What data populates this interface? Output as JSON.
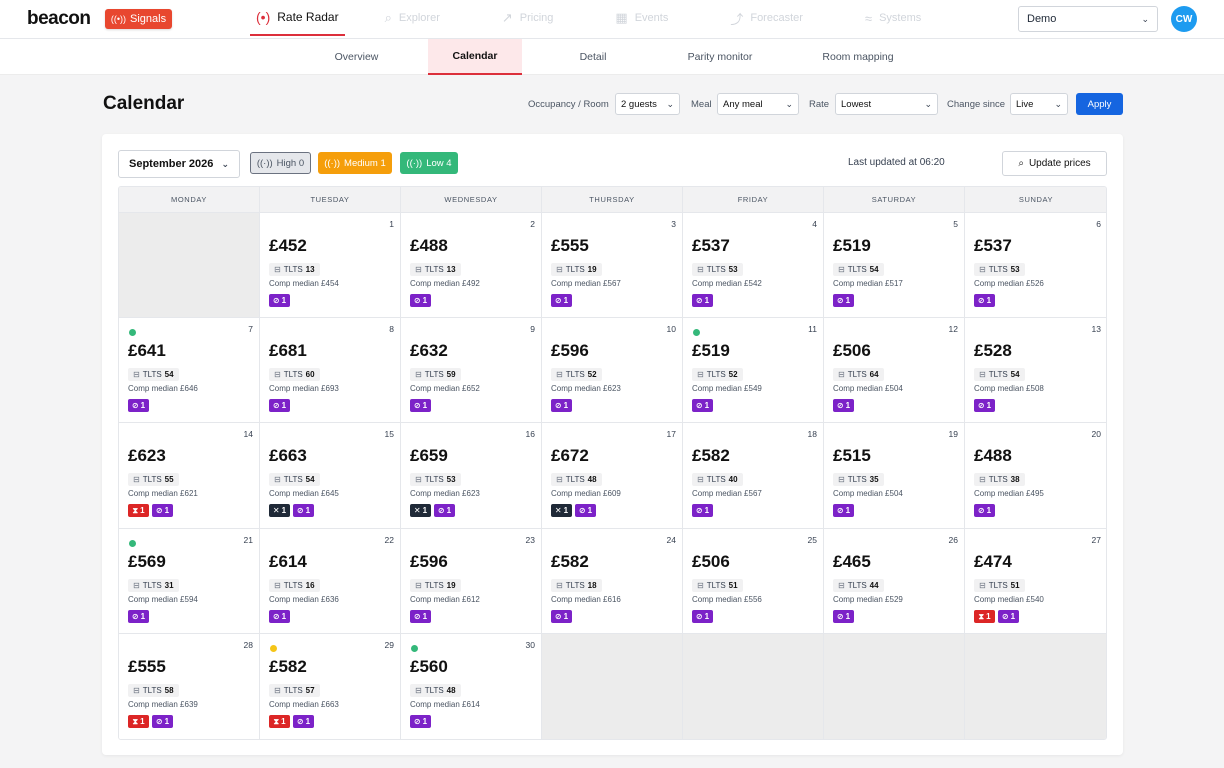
{
  "header": {
    "logo": "beacon",
    "signals_label": "Signals",
    "nav": [
      {
        "label": "Rate Radar",
        "icon": "radar-icon",
        "active": true
      },
      {
        "label": "Explorer",
        "icon": "search-icon",
        "active": false
      },
      {
        "label": "Pricing",
        "icon": "chart-icon",
        "active": false
      },
      {
        "label": "Events",
        "icon": "calendar-icon",
        "active": false
      },
      {
        "label": "Forecaster",
        "icon": "trend-icon",
        "active": false
      },
      {
        "label": "Systems",
        "icon": "wifi-icon",
        "active": false
      }
    ],
    "org_select": "Demo",
    "avatar_initials": "CW"
  },
  "subtabs": [
    {
      "label": "Overview",
      "active": false
    },
    {
      "label": "Calendar",
      "active": true
    },
    {
      "label": "Detail",
      "active": false
    },
    {
      "label": "Parity monitor",
      "active": false
    },
    {
      "label": "Room mapping",
      "active": false
    }
  ],
  "page": {
    "title": "Calendar",
    "controls": {
      "occupancy_label": "Occupancy / Room",
      "occupancy_value": "2 guests",
      "meal_label": "Meal",
      "meal_value": "Any meal",
      "rate_label": "Rate",
      "rate_value": "Lowest",
      "change_label": "Change since",
      "change_value": "Live",
      "apply_label": "Apply"
    }
  },
  "calendar": {
    "month": "September 2026",
    "filters": {
      "high": "High 0",
      "medium": "Medium 1",
      "low": "Low 4"
    },
    "last_updated": "Last updated at 06:20",
    "update_label": "Update prices",
    "weekdays": [
      "MONDAY",
      "TUESDAY",
      "WEDNESDAY",
      "THURSDAY",
      "FRIDAY",
      "SATURDAY",
      "SUNDAY"
    ],
    "tlts_label": "TLTS",
    "comp_prefix": "Comp median",
    "colors": {
      "green": "#34b87a",
      "yellow": "#f5c518",
      "purple": "#7c22c8",
      "red": "#dc2626",
      "dark": "#1f2937"
    },
    "days": [
      {
        "day": "1",
        "price": "£452",
        "tlts": "13",
        "comp": "£454",
        "badges": [
          [
            "purple",
            "1"
          ]
        ]
      },
      {
        "day": "2",
        "price": "£488",
        "tlts": "13",
        "comp": "£492",
        "badges": [
          [
            "purple",
            "1"
          ]
        ]
      },
      {
        "day": "3",
        "price": "£555",
        "tlts": "19",
        "comp": "£567",
        "badges": [
          [
            "purple",
            "1"
          ]
        ]
      },
      {
        "day": "4",
        "price": "£537",
        "tlts": "53",
        "comp": "£542",
        "badges": [
          [
            "purple",
            "1"
          ]
        ]
      },
      {
        "day": "5",
        "price": "£519",
        "tlts": "54",
        "comp": "£517",
        "badges": [
          [
            "purple",
            "1"
          ]
        ]
      },
      {
        "day": "6",
        "price": "£537",
        "tlts": "53",
        "comp": "£526",
        "badges": [
          [
            "purple",
            "1"
          ]
        ]
      },
      {
        "day": "7",
        "price": "£641",
        "tlts": "54",
        "comp": "£646",
        "dot": "green",
        "badges": [
          [
            "purple",
            "1"
          ]
        ]
      },
      {
        "day": "8",
        "price": "£681",
        "tlts": "60",
        "comp": "£693",
        "badges": [
          [
            "purple",
            "1"
          ]
        ]
      },
      {
        "day": "9",
        "price": "£632",
        "tlts": "59",
        "comp": "£652",
        "badges": [
          [
            "purple",
            "1"
          ]
        ]
      },
      {
        "day": "10",
        "price": "£596",
        "tlts": "52",
        "comp": "£623",
        "badges": [
          [
            "purple",
            "1"
          ]
        ]
      },
      {
        "day": "11",
        "price": "£519",
        "tlts": "52",
        "comp": "£549",
        "dot": "green",
        "badges": [
          [
            "purple",
            "1"
          ]
        ]
      },
      {
        "day": "12",
        "price": "£506",
        "tlts": "64",
        "comp": "£504",
        "badges": [
          [
            "purple",
            "1"
          ]
        ]
      },
      {
        "day": "13",
        "price": "£528",
        "tlts": "54",
        "comp": "£508",
        "badges": [
          [
            "purple",
            "1"
          ]
        ]
      },
      {
        "day": "14",
        "price": "£623",
        "tlts": "55",
        "comp": "£621",
        "badges": [
          [
            "red",
            "1"
          ],
          [
            "purple",
            "1"
          ]
        ]
      },
      {
        "day": "15",
        "price": "£663",
        "tlts": "54",
        "comp": "£645",
        "badges": [
          [
            "dark",
            "1"
          ],
          [
            "purple",
            "1"
          ]
        ]
      },
      {
        "day": "16",
        "price": "£659",
        "tlts": "53",
        "comp": "£623",
        "badges": [
          [
            "dark",
            "1"
          ],
          [
            "purple",
            "1"
          ]
        ]
      },
      {
        "day": "17",
        "price": "£672",
        "tlts": "48",
        "comp": "£609",
        "badges": [
          [
            "dark",
            "1"
          ],
          [
            "purple",
            "1"
          ]
        ]
      },
      {
        "day": "18",
        "price": "£582",
        "tlts": "40",
        "comp": "£567",
        "badges": [
          [
            "purple",
            "1"
          ]
        ]
      },
      {
        "day": "19",
        "price": "£515",
        "tlts": "35",
        "comp": "£504",
        "badges": [
          [
            "purple",
            "1"
          ]
        ]
      },
      {
        "day": "20",
        "price": "£488",
        "tlts": "38",
        "comp": "£495",
        "badges": [
          [
            "purple",
            "1"
          ]
        ]
      },
      {
        "day": "21",
        "price": "£569",
        "tlts": "31",
        "comp": "£594",
        "dot": "green",
        "badges": [
          [
            "purple",
            "1"
          ]
        ]
      },
      {
        "day": "22",
        "price": "£614",
        "tlts": "16",
        "comp": "£636",
        "badges": [
          [
            "purple",
            "1"
          ]
        ]
      },
      {
        "day": "23",
        "price": "£596",
        "tlts": "19",
        "comp": "£612",
        "badges": [
          [
            "purple",
            "1"
          ]
        ]
      },
      {
        "day": "24",
        "price": "£582",
        "tlts": "18",
        "comp": "£616",
        "badges": [
          [
            "purple",
            "1"
          ]
        ]
      },
      {
        "day": "25",
        "price": "£506",
        "tlts": "51",
        "comp": "£556",
        "badges": [
          [
            "purple",
            "1"
          ]
        ]
      },
      {
        "day": "26",
        "price": "£465",
        "tlts": "44",
        "comp": "£529",
        "badges": [
          [
            "purple",
            "1"
          ]
        ]
      },
      {
        "day": "27",
        "price": "£474",
        "tlts": "51",
        "comp": "£540",
        "badges": [
          [
            "red",
            "1"
          ],
          [
            "purple",
            "1"
          ]
        ]
      },
      {
        "day": "28",
        "price": "£555",
        "tlts": "58",
        "comp": "£639",
        "badges": [
          [
            "red",
            "1"
          ],
          [
            "purple",
            "1"
          ]
        ]
      },
      {
        "day": "29",
        "price": "£582",
        "tlts": "57",
        "comp": "£663",
        "dot": "yellow",
        "badges": [
          [
            "red",
            "1"
          ],
          [
            "purple",
            "1"
          ]
        ]
      },
      {
        "day": "30",
        "price": "£560",
        "tlts": "48",
        "comp": "£614",
        "dot": "green",
        "badges": [
          [
            "purple",
            "1"
          ]
        ]
      }
    ]
  }
}
